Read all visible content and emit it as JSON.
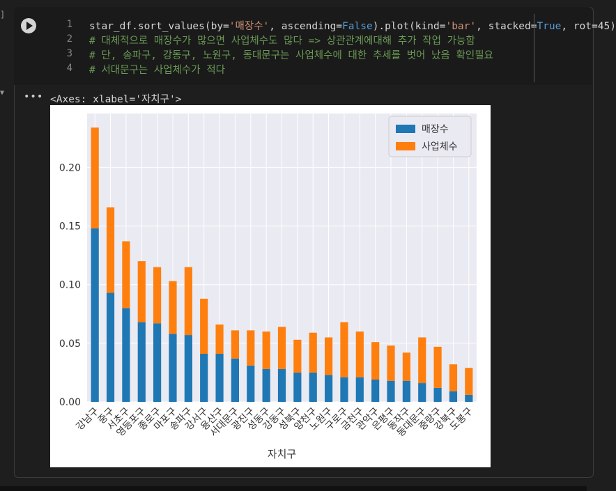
{
  "notebook": {
    "line_numbers": [
      "1",
      "2",
      "3",
      "4"
    ],
    "code": {
      "line1": {
        "p1": "star_df.sort_values(by=",
        "s1": "'매장수'",
        "p2": ", ascending=",
        "k1": "False",
        "p3": ").plot(kind=",
        "s2": "'bar'",
        "p4": ", stacked=",
        "k2": "True",
        "p5": ", rot=45)"
      },
      "line2": "# 대체적으로 매장수가 많으면 사업체수도 많다 => 상관관계에대해 추가 작업 가능함",
      "line3": "# 단, 송파구, 강동구, 노원구, 동대문구는 사업체수에 대한 추세를 벗어 났음 확인필요",
      "line4": "# 서대문구는 사업체수가 적다"
    },
    "gutter_bracket": "]",
    "collapse_icon": "chevron-down-icon",
    "output_menu_icon": "more-horizontal-icon",
    "output_text": "<Axes: xlabel='자치구'>"
  },
  "chart_data": {
    "type": "bar",
    "stacked": true,
    "categories": [
      "강남구",
      "중구",
      "서초구",
      "영등포구",
      "종로구",
      "마포구",
      "송파구",
      "강서구",
      "용산구",
      "서대문구",
      "광진구",
      "성동구",
      "강동구",
      "성북구",
      "양천구",
      "노원구",
      "구로구",
      "금천구",
      "관악구",
      "은평구",
      "동작구",
      "동대문구",
      "중랑구",
      "강북구",
      "도봉구"
    ],
    "series": [
      {
        "name": "매장수",
        "color": "#1f77b4",
        "values": [
          0.148,
          0.093,
          0.08,
          0.068,
          0.067,
          0.058,
          0.057,
          0.041,
          0.041,
          0.037,
          0.031,
          0.028,
          0.028,
          0.025,
          0.025,
          0.023,
          0.021,
          0.021,
          0.019,
          0.018,
          0.018,
          0.016,
          0.012,
          0.009,
          0.006
        ]
      },
      {
        "name": "사업체수",
        "color": "#ff7f0e",
        "values": [
          0.086,
          0.073,
          0.057,
          0.052,
          0.048,
          0.045,
          0.058,
          0.047,
          0.025,
          0.024,
          0.03,
          0.032,
          0.036,
          0.028,
          0.034,
          0.032,
          0.047,
          0.039,
          0.032,
          0.03,
          0.024,
          0.039,
          0.035,
          0.023,
          0.023
        ]
      }
    ],
    "xlabel": "자치구",
    "ylabel": "",
    "yticks": [
      "0.00",
      "0.05",
      "0.10",
      "0.15",
      "0.20"
    ],
    "ylim": [
      0,
      0.246
    ],
    "xtick_rotation": 45,
    "grid": true,
    "legend": "top-right",
    "style": "seaborn"
  }
}
